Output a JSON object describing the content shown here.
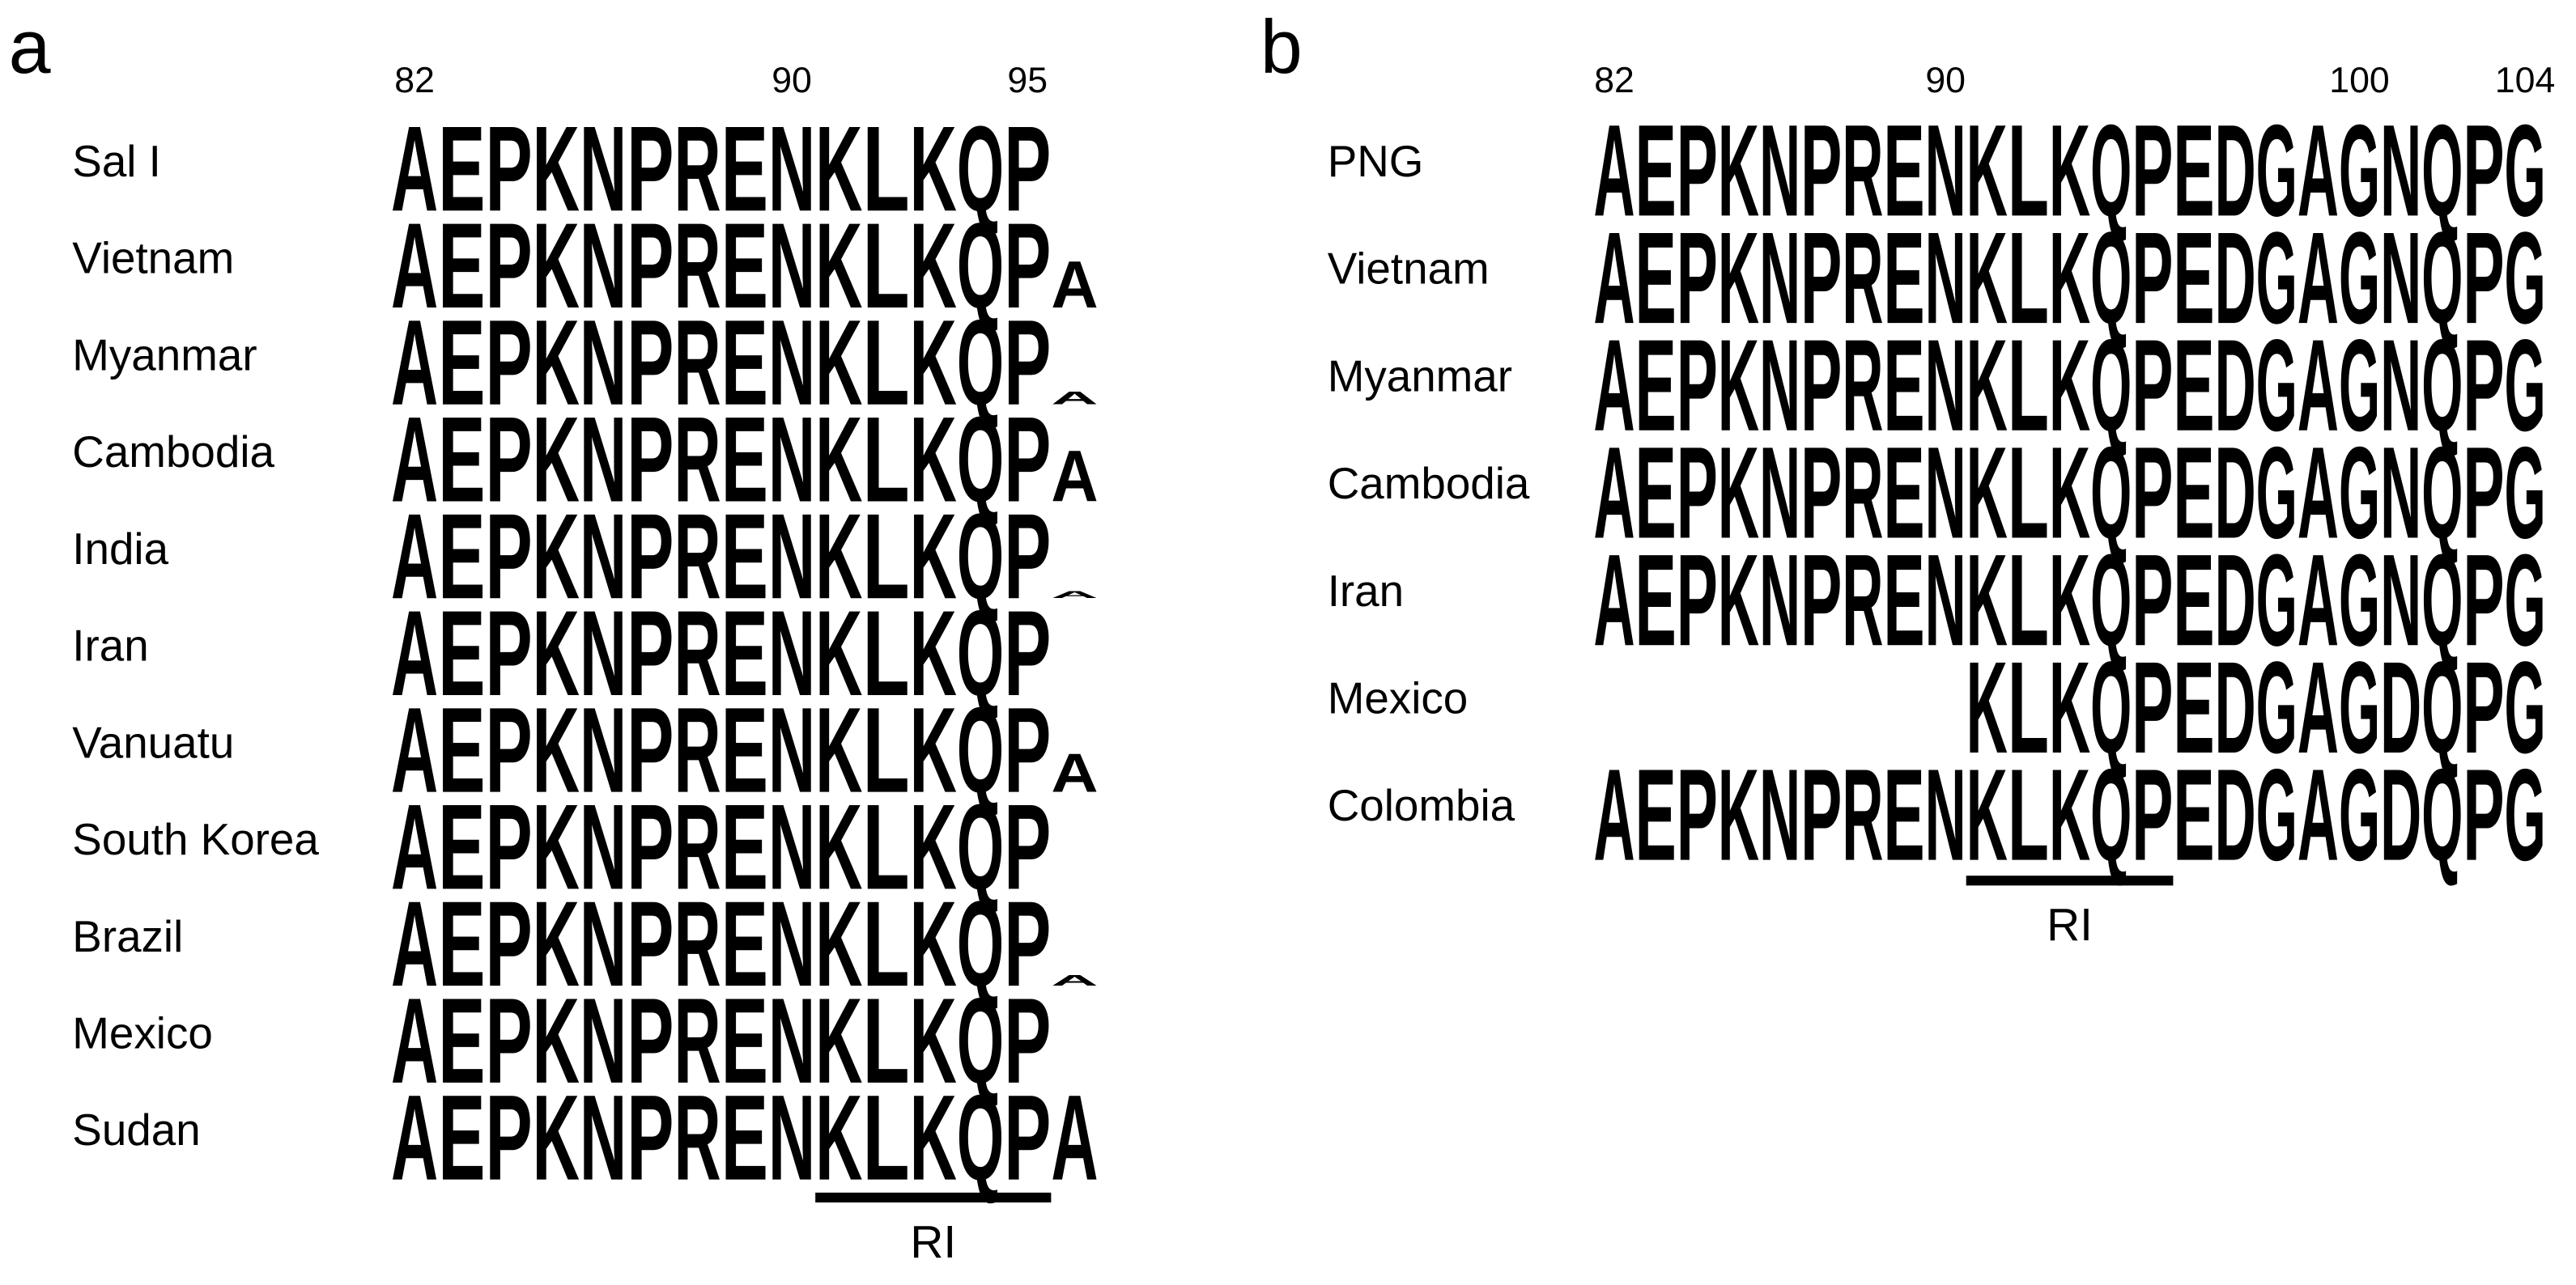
{
  "residue_colors": {
    "A": "#000000",
    "P": "#000000",
    "L": "#000000",
    "E": "#cc0000",
    "D": "#cc0000",
    "K": "#0000cc",
    "R": "#0000cc",
    "N": "#cc00cc",
    "Q": "#cc00cc",
    "G": "#00cc00"
  },
  "panel_a": {
    "label": "a",
    "ticks": [
      82,
      90,
      95
    ],
    "region_label": "RI",
    "rows": [
      {
        "name": "Sal I",
        "residues": [
          "A",
          "E",
          "P",
          "K",
          "N",
          "P",
          "R",
          "E",
          "N",
          "K",
          "L",
          "K",
          "Q",
          "P"
        ]
      },
      {
        "name": "Vietnam",
        "residues": [
          "A",
          "E",
          "P",
          "K",
          "N",
          "P",
          "R",
          "E",
          "N",
          "K",
          "L",
          "K",
          "Q",
          "P",
          "A"
        ]
      },
      {
        "name": "Myanmar",
        "residues": [
          "A",
          "E",
          "P",
          "K",
          "N",
          "P",
          "R",
          "E",
          "N",
          "K",
          "L",
          "K",
          "Q",
          "P",
          "A"
        ]
      },
      {
        "name": "Cambodia",
        "residues": [
          "A",
          "E",
          "P",
          "K",
          "N",
          "P",
          "R",
          "E",
          "N",
          "K",
          "L",
          "K",
          "Q",
          "P",
          "A"
        ]
      },
      {
        "name": "India",
        "residues": [
          "A",
          "E",
          "P",
          "K",
          "N",
          "P",
          "R",
          "E",
          "N",
          "K",
          "L",
          "K",
          "Q",
          "P",
          "A"
        ]
      },
      {
        "name": "Iran",
        "residues": [
          "A",
          "E",
          "P",
          "K",
          "N",
          "P",
          "R",
          "E",
          "N",
          "K",
          "L",
          "K",
          "Q",
          "P"
        ]
      },
      {
        "name": "Vanuatu",
        "residues": [
          "A",
          "E",
          "P",
          "K",
          "N",
          "P",
          "R",
          "E",
          "N",
          "K",
          "L",
          "K",
          "Q",
          "P",
          "A"
        ]
      },
      {
        "name": "South Korea",
        "residues": [
          "A",
          "E",
          "P",
          "K",
          "N",
          "P",
          "R",
          "E",
          "N",
          "K",
          "L",
          "K",
          "Q",
          "P"
        ]
      },
      {
        "name": "Brazil",
        "residues": [
          "A",
          "E",
          "P",
          "K",
          "N",
          "P",
          "R",
          "E",
          "N",
          "K",
          "L",
          "K",
          "Q",
          "P",
          "A"
        ]
      },
      {
        "name": "Mexico",
        "residues": [
          "A",
          "E",
          "P",
          "K",
          "N",
          "P",
          "R",
          "E",
          "N",
          "K",
          "L",
          "K",
          "Q",
          "P"
        ]
      },
      {
        "name": "Sudan",
        "residues": [
          "A",
          "E",
          "P",
          "K",
          "N",
          "P",
          "R",
          "E",
          "N",
          "K",
          "L",
          "K",
          "Q",
          "P",
          "A"
        ]
      }
    ]
  },
  "panel_b": {
    "label": "b",
    "ticks": [
      82,
      90,
      100,
      104
    ],
    "region_label": "RI",
    "rows": [
      {
        "name": "PNG",
        "residues": [
          "A",
          "E",
          "P",
          "K",
          "N",
          "P",
          "R",
          "E",
          "N",
          "K",
          "L",
          "K",
          "Q",
          "P",
          "E",
          "D",
          "G",
          "A",
          "G",
          "N",
          "Q",
          "P",
          "G"
        ]
      },
      {
        "name": "Vietnam",
        "residues": [
          "A",
          "E",
          "P",
          "K",
          "N",
          "P",
          "R",
          "E",
          "N",
          "K",
          "L",
          "K",
          "Q",
          "P",
          "E",
          "D",
          "G",
          "A",
          "G",
          "N",
          "Q",
          "P",
          "G"
        ]
      },
      {
        "name": "Myanmar",
        "residues": [
          "A",
          "E",
          "P",
          "K",
          "N",
          "P",
          "R",
          "E",
          "N",
          "K",
          "L",
          "K",
          "Q",
          "P",
          "E",
          "D",
          "G",
          "A",
          "G",
          "N",
          "Q",
          "P",
          "G"
        ]
      },
      {
        "name": "Cambodia",
        "residues": [
          "A",
          "E",
          "P",
          "K",
          "N",
          "P",
          "R",
          "E",
          "N",
          "K",
          "L",
          "K",
          "Q",
          "P",
          "E",
          "D",
          "G",
          "A",
          "G",
          "N",
          "Q",
          "P",
          "G"
        ]
      },
      {
        "name": "Iran",
        "residues": [
          "A",
          "E",
          "P",
          "K",
          "N",
          "P",
          "R",
          "E",
          "N",
          "K",
          "L",
          "K",
          "Q",
          "P",
          "E",
          "D",
          "G",
          "A",
          "G",
          "N",
          "Q",
          "P",
          "G"
        ]
      },
      {
        "name": "Mexico",
        "residues": [
          null,
          null,
          null,
          null,
          null,
          null,
          null,
          null,
          null,
          "K",
          "L",
          "K",
          "Q",
          "P",
          "E",
          "D",
          "G",
          "A",
          "G",
          "D",
          "Q",
          "P",
          "G"
        ]
      },
      {
        "name": "Colombia",
        "residues": [
          "A",
          "E",
          "P",
          "K",
          "N",
          "P",
          "R",
          "E",
          "N",
          "K",
          "L",
          "K",
          "Q",
          "P",
          "E",
          "D",
          "G",
          "A",
          "G",
          "D",
          "Q",
          "P",
          "G"
        ]
      }
    ]
  }
}
